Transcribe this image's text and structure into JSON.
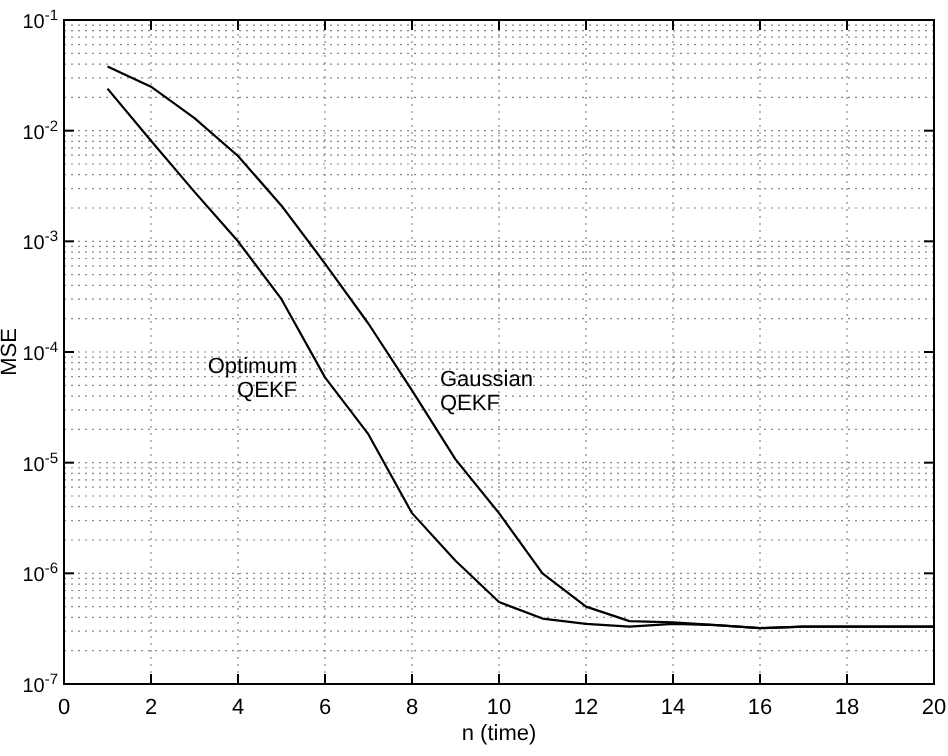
{
  "chart_data": {
    "type": "line",
    "xlabel": "n (time)",
    "ylabel": "MSE",
    "log": "y",
    "grid": true,
    "marker": "none",
    "line_style": "solid",
    "x": [
      1,
      2,
      3,
      4,
      5,
      6,
      7,
      8,
      9,
      10,
      11,
      12,
      13,
      14,
      15,
      16,
      17,
      18,
      19,
      20
    ],
    "series": [
      {
        "color": "#000000",
        "values": [
          0.038,
          0.025,
          0.013,
          0.0059,
          0.0021,
          0.00063,
          0.00018,
          4.5e-05,
          1.07e-05,
          3.5e-06,
          1e-06,
          5e-07,
          3.7e-07,
          3.6e-07,
          3.4e-07,
          3.2e-07,
          3.3e-07,
          3.3e-07,
          3.3e-07,
          3.3e-07
        ]
      },
      {
        "color": "#000000",
        "values": [
          0.024,
          0.0081,
          0.0028,
          0.001,
          0.0003,
          5.9e-05,
          1.8e-05,
          3.5e-06,
          1.3e-06,
          5.5e-07,
          3.9e-07,
          3.5e-07,
          3.3e-07,
          3.5e-07,
          3.4e-07,
          3.2e-07,
          3.3e-07,
          3.3e-07,
          3.3e-07,
          3.3e-07
        ]
      }
    ],
    "xlim": [
      0,
      20
    ],
    "xticks": [
      0,
      2,
      4,
      6,
      8,
      10,
      12,
      14,
      16,
      18,
      20
    ],
    "ylim": [
      1e-07,
      0.1
    ],
    "yticks": [
      {
        "value": 1e-07,
        "label": "10$^{-7}$"
      },
      {
        "value": 1e-06,
        "label": "10$^{-6}$"
      },
      {
        "value": 1e-05,
        "label": "10$^{-5}$"
      },
      {
        "value": 0.0001,
        "label": "10$^{-4}$"
      },
      {
        "value": 0.001,
        "label": "10$^{-3}$"
      },
      {
        "value": 0.01,
        "label": "10$^{-2}$"
      },
      {
        "value": 0.1,
        "label": "10$^{-1}$"
      }
    ],
    "annotations": [
      "Gaussian\nQEKF",
      "Optimum\nQEKF"
    ]
  }
}
